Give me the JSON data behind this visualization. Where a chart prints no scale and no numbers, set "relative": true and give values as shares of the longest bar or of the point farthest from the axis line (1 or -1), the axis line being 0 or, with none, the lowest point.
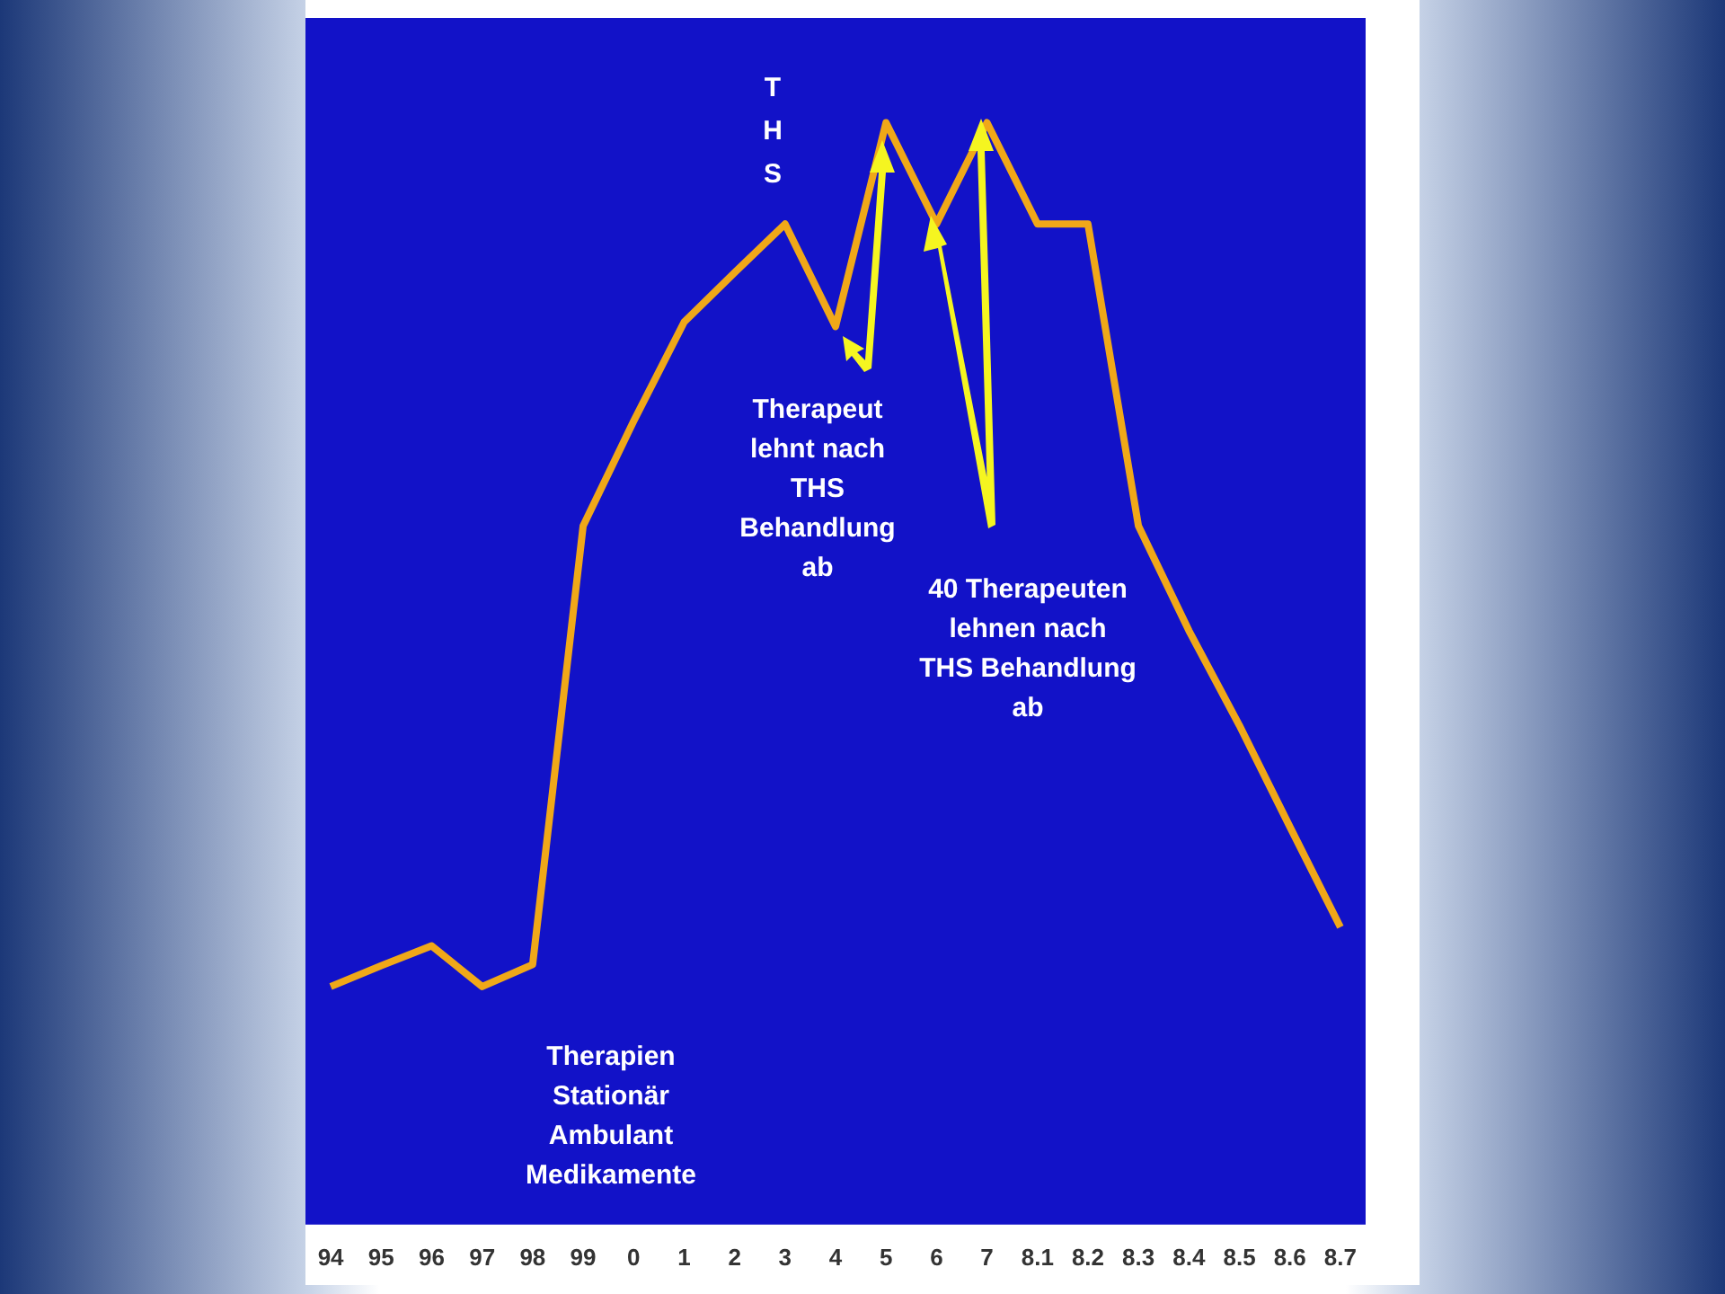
{
  "chart_data": {
    "type": "line",
    "relative": true,
    "categories": [
      "94",
      "95",
      "96",
      "97",
      "98",
      "99",
      "0",
      "1",
      "2",
      "3",
      "4",
      "5",
      "6",
      "7",
      "8.1",
      "8.2",
      "8.3",
      "8.4",
      "8.5",
      "8.6",
      "8.7"
    ],
    "series": [
      {
        "color": "#f0a818",
        "values": [
          0.216,
          0.235,
          0.253,
          0.216,
          0.236,
          0.634,
          0.729,
          0.819,
          0.864,
          0.908,
          0.815,
          1,
          0.908,
          1,
          0.908,
          0.908,
          0.634,
          0.539,
          0.453,
          0.361,
          0.27
        ]
      }
    ],
    "legend": false,
    "marker": "none",
    "line_style": "solid",
    "annotations": [
      "THS",
      "Therapeut\nlehnt nach\nTHS\nBehandlung\nab",
      "40 Therapeuten\nlehnen nach\nTHS Behandlung\nab",
      "Therapien\nStationär\nAmbulant\nMedikamente"
    ]
  }
}
